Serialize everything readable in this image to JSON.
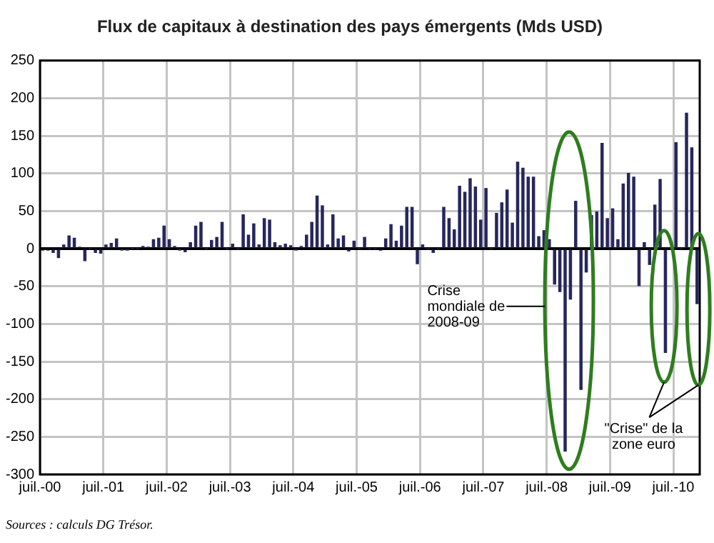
{
  "chart_data": {
    "type": "bar",
    "title": "Flux de capitaux à destination des pays émergents (Mds USD)",
    "x": [
      "2000-07",
      "2000-08",
      "2000-09",
      "2000-10",
      "2000-11",
      "2000-12",
      "2001-01",
      "2001-02",
      "2001-03",
      "2001-04",
      "2001-05",
      "2001-06",
      "2001-07",
      "2001-08",
      "2001-09",
      "2001-10",
      "2001-11",
      "2001-12",
      "2002-01",
      "2002-02",
      "2002-03",
      "2002-04",
      "2002-05",
      "2002-06",
      "2002-07",
      "2002-08",
      "2002-09",
      "2002-10",
      "2002-11",
      "2002-12",
      "2003-01",
      "2003-02",
      "2003-03",
      "2003-04",
      "2003-05",
      "2003-06",
      "2003-07",
      "2003-08",
      "2003-09",
      "2003-10",
      "2003-11",
      "2003-12",
      "2004-01",
      "2004-02",
      "2004-03",
      "2004-04",
      "2004-05",
      "2004-06",
      "2004-07",
      "2004-08",
      "2004-09",
      "2004-10",
      "2004-11",
      "2004-12",
      "2005-01",
      "2005-02",
      "2005-03",
      "2005-04",
      "2005-05",
      "2005-06",
      "2005-07",
      "2005-08",
      "2005-09",
      "2005-10",
      "2005-11",
      "2005-12",
      "2006-01",
      "2006-02",
      "2006-03",
      "2006-04",
      "2006-05",
      "2006-06",
      "2006-07",
      "2006-08",
      "2006-09",
      "2006-10",
      "2006-11",
      "2006-12",
      "2007-01",
      "2007-02",
      "2007-03",
      "2007-04",
      "2007-05",
      "2007-06",
      "2007-07",
      "2007-08",
      "2007-09",
      "2007-10",
      "2007-11",
      "2007-12",
      "2008-01",
      "2008-02",
      "2008-03",
      "2008-04",
      "2008-05",
      "2008-06",
      "2008-07",
      "2008-08",
      "2008-09",
      "2008-10",
      "2008-11",
      "2008-12",
      "2009-01",
      "2009-02",
      "2009-03",
      "2009-04",
      "2009-05",
      "2009-06",
      "2009-07",
      "2009-08",
      "2009-09",
      "2009-10",
      "2009-11",
      "2009-12",
      "2010-01",
      "2010-02",
      "2010-03",
      "2010-04",
      "2010-05",
      "2010-06",
      "2010-07",
      "2010-08",
      "2010-09",
      "2010-10",
      "2010-11"
    ],
    "series": [
      {
        "color": "#27275e",
        "values": [
          -2,
          -2,
          -5,
          -12,
          5,
          17,
          14,
          2,
          -16,
          0,
          -5,
          -6,
          5,
          7,
          13,
          -1,
          -1,
          0,
          0,
          3,
          2,
          12,
          14,
          30,
          12,
          3,
          -1,
          -4,
          8,
          30,
          35,
          0,
          11,
          15,
          35,
          0,
          6,
          0,
          45,
          18,
          33,
          5,
          40,
          38,
          8,
          4,
          6,
          4,
          -1,
          3,
          18,
          35,
          70,
          57,
          5,
          45,
          13,
          17,
          -3,
          10,
          0,
          15,
          0,
          0,
          -2,
          13,
          32,
          10,
          30,
          55,
          55,
          -20,
          5,
          0,
          -5,
          0,
          55,
          40,
          25,
          83,
          75,
          93,
          82,
          38,
          80,
          0,
          47,
          61,
          78,
          34,
          115,
          107,
          95,
          95,
          16,
          24,
          12,
          -47,
          -57,
          -269,
          -67,
          63,
          -187,
          -31,
          44,
          49,
          140,
          40,
          53,
          12,
          86,
          100,
          95,
          -49,
          8,
          -21,
          58,
          92,
          -138,
          null,
          141,
          0,
          180,
          134,
          -73
        ]
      }
    ],
    "xlim": [
      "2000-07",
      "2010-12"
    ],
    "xticks": [
      {
        "value": "2000-07",
        "label": "juil.-00"
      },
      {
        "value": "2001-07",
        "label": "juil.-01"
      },
      {
        "value": "2002-07",
        "label": "juil.-02"
      },
      {
        "value": "2003-07",
        "label": "juil.-03"
      },
      {
        "value": "2004-07",
        "label": "juil.-04"
      },
      {
        "value": "2005-07",
        "label": "juil.-05"
      },
      {
        "value": "2006-07",
        "label": "juil.-06"
      },
      {
        "value": "2007-07",
        "label": "juil.-07"
      },
      {
        "value": "2008-07",
        "label": "juil.-08"
      },
      {
        "value": "2009-07",
        "label": "juil.-09"
      },
      {
        "value": "2010-07",
        "label": "juil.-10"
      }
    ],
    "ylim": [
      -300,
      250
    ],
    "yticks": [
      -300,
      -250,
      -200,
      -150,
      -100,
      -50,
      0,
      50,
      100,
      150,
      200,
      250
    ],
    "grid": true,
    "annotations": [
      "Crise mondiale de 2008-09",
      "\"Crise\" de la zone euro",
      "Sources : calculs DG Trésor."
    ]
  }
}
